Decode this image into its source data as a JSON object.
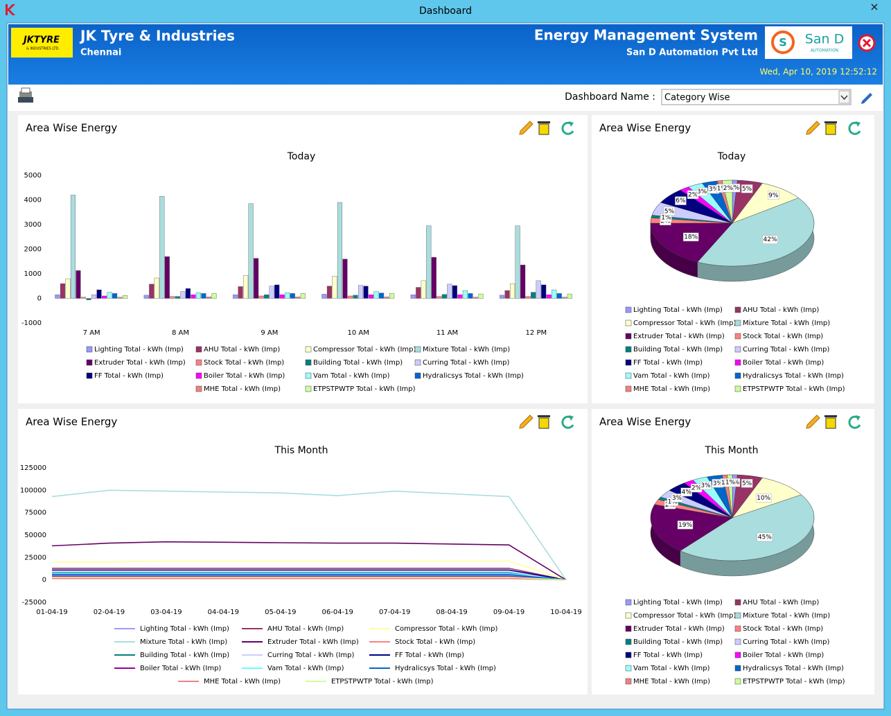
{
  "window": {
    "title": "Dashboard"
  },
  "header": {
    "logo_text": "JKTYRE",
    "logo_subtext": "& INDUSTRIES LTD.",
    "company": "JK Tyre & Industries",
    "location": "Chennai",
    "system": "Energy Management System",
    "vendor": "San D Automation Pvt Ltd",
    "vendor_logo": "San D",
    "vendor_logo_sub": "AUTOMATION",
    "datetime": "Wed, Apr 10, 2019 12:52:12"
  },
  "toolbar": {
    "label": "Dashboard Name :",
    "selected": "Category Wise"
  },
  "chart_data": [
    {
      "type": "bar",
      "panel_title": "Area Wise Energy",
      "title": "Today",
      "categories": [
        "7 AM",
        "8 AM",
        "9 AM",
        "10 AM",
        "11 AM",
        "12 PM"
      ],
      "series": [
        {
          "name": "Lighting Total - kWh (Imp)",
          "color": "#9999ff",
          "values": [
            150,
            130,
            150,
            170,
            150,
            130
          ]
        },
        {
          "name": "AHU Total - kWh (Imp)",
          "color": "#993366",
          "values": [
            600,
            580,
            480,
            500,
            450,
            320
          ]
        },
        {
          "name": "Compressor Total - kWh (Imp)",
          "color": "#ffffcc",
          "values": [
            800,
            830,
            930,
            900,
            720,
            600
          ]
        },
        {
          "name": "Mixture Total - kWh (Imp)",
          "color": "#aadddd",
          "values": [
            4200,
            4150,
            3850,
            3900,
            2950,
            2950
          ]
        },
        {
          "name": "Extruder Total - kWh (Imp)",
          "color": "#660066",
          "values": [
            1130,
            1700,
            1630,
            1600,
            1670,
            1360
          ]
        },
        {
          "name": "Stock Total - kWh (Imp)",
          "color": "#ff8080",
          "values": [
            50,
            80,
            100,
            100,
            80,
            80
          ]
        },
        {
          "name": "Building Total - kWh (Imp)",
          "color": "#008080",
          "values": [
            -60,
            80,
            150,
            130,
            160,
            250
          ]
        },
        {
          "name": "Curring Total - kWh (Imp)",
          "color": "#ccccff",
          "values": [
            150,
            280,
            500,
            530,
            580,
            720
          ]
        },
        {
          "name": "FF Total - kWh (Imp)",
          "color": "#000080",
          "values": [
            350,
            400,
            550,
            500,
            520,
            550
          ]
        },
        {
          "name": "Boiler Total - kWh (Imp)",
          "color": "#ff00ff",
          "values": [
            100,
            150,
            150,
            150,
            150,
            150
          ]
        },
        {
          "name": "Vam Total - kWh (Imp)",
          "color": "#99ffff",
          "values": [
            250,
            230,
            230,
            280,
            320,
            350
          ]
        },
        {
          "name": "Hydralicsys Total - kWh (Imp)",
          "color": "#0066cc",
          "values": [
            200,
            200,
            200,
            220,
            200,
            200
          ]
        },
        {
          "name": "MHE Total - kWh (Imp)",
          "color": "#f08080",
          "values": [
            50,
            60,
            60,
            60,
            50,
            50
          ]
        },
        {
          "name": "ETPSTPWTP Total - kWh (Imp)",
          "color": "#ccff99",
          "values": [
            120,
            200,
            200,
            200,
            180,
            180
          ]
        }
      ],
      "ylim": [
        -1000,
        5000
      ],
      "yticks": [
        -1000,
        0,
        1000,
        2000,
        3000,
        4000,
        5000
      ],
      "grid": false
    },
    {
      "type": "pie",
      "panel_title": "Area Wise Energy",
      "title": "Today",
      "categories": [
        "Lighting Total - kWh (Imp)",
        "AHU Total - kWh (Imp)",
        "Compressor Total - kWh (Imp)",
        "Mixture Total - kWh (Imp)",
        "Extruder Total - kWh (Imp)",
        "Stock Total - kWh (Imp)",
        "Building Total - kWh (Imp)",
        "Curring Total - kWh (Imp)",
        "FF Total - kWh (Imp)",
        "Boiler Total - kWh (Imp)",
        "Vam Total - kWh (Imp)",
        "Hydralicsys Total - kWh (Imp)",
        "MHE Total - kWh (Imp)",
        "ETPSTPWTP Total - kWh (Imp)"
      ],
      "colors": [
        "#9999ff",
        "#993366",
        "#ffffcc",
        "#aadddd",
        "#660066",
        "#ff8080",
        "#008080",
        "#ccccff",
        "#000080",
        "#ff00ff",
        "#99ffff",
        "#0066cc",
        "#f08080",
        "#ccff99"
      ],
      "values": [
        1,
        5,
        9,
        42,
        18,
        2,
        1,
        5,
        6,
        2,
        3,
        3,
        1,
        2
      ],
      "value_labels": [
        "1%",
        "5%",
        "9%",
        "42%",
        "18%",
        "2%",
        "1%",
        "5%",
        "6%",
        "2%",
        "3%",
        "3%",
        "1%",
        "2%"
      ]
    },
    {
      "type": "line",
      "panel_title": "Area Wise Energy",
      "title": "This Month",
      "categories": [
        "01-04-19",
        "02-04-19",
        "03-04-19",
        "04-04-19",
        "05-04-19",
        "06-04-19",
        "07-04-19",
        "08-04-19",
        "09-04-19",
        "10-04-19"
      ],
      "series": [
        {
          "name": "Lighting Total - kWh (Imp)",
          "color": "#9999ff",
          "values": [
            5000,
            5000,
            5000,
            5000,
            5000,
            5000,
            5000,
            5000,
            5000,
            0
          ]
        },
        {
          "name": "AHU Total - kWh (Imp)",
          "color": "#993366",
          "values": [
            13000,
            13000,
            13000,
            13000,
            13000,
            13000,
            13000,
            13000,
            13000,
            0
          ]
        },
        {
          "name": "Compressor Total - kWh (Imp)",
          "color": "#ffff99",
          "values": [
            20000,
            20000,
            21000,
            21000,
            21000,
            21000,
            21000,
            21000,
            21000,
            0
          ]
        },
        {
          "name": "Mixture Total - kWh (Imp)",
          "color": "#aadddd",
          "values": [
            93000,
            100000,
            99000,
            98000,
            97000,
            94000,
            99000,
            96000,
            93000,
            0
          ]
        },
        {
          "name": "Extruder Total - kWh (Imp)",
          "color": "#660066",
          "values": [
            38000,
            41000,
            42500,
            42000,
            41500,
            41000,
            41000,
            40000,
            39000,
            0
          ]
        },
        {
          "name": "Stock Total - kWh (Imp)",
          "color": "#ff8080",
          "values": [
            2500,
            2500,
            2500,
            2500,
            2500,
            2500,
            2500,
            2500,
            2500,
            0
          ]
        },
        {
          "name": "Building Total - kWh (Imp)",
          "color": "#008080",
          "values": [
            8000,
            8000,
            8000,
            8000,
            8000,
            8000,
            8000,
            8000,
            8000,
            0
          ]
        },
        {
          "name": "Curring Total - kWh (Imp)",
          "color": "#ccccff",
          "values": [
            9000,
            9000,
            9000,
            9000,
            9000,
            9000,
            9000,
            9000,
            9000,
            0
          ]
        },
        {
          "name": "FF Total - kWh (Imp)",
          "color": "#000080",
          "values": [
            11000,
            11000,
            11000,
            11000,
            11000,
            11000,
            11000,
            11000,
            11000,
            0
          ]
        },
        {
          "name": "Boiler Total - kWh (Imp)",
          "color": "#990099",
          "values": [
            4000,
            4000,
            4000,
            4000,
            4000,
            4000,
            4000,
            4000,
            4000,
            0
          ]
        },
        {
          "name": "Vam Total - kWh (Imp)",
          "color": "#66ffff",
          "values": [
            7000,
            7000,
            7000,
            7000,
            7000,
            7000,
            7000,
            7000,
            7000,
            0
          ]
        },
        {
          "name": "Hydralicsys Total - kWh (Imp)",
          "color": "#0066cc",
          "values": [
            6000,
            6000,
            6000,
            6000,
            6000,
            6000,
            6000,
            6000,
            6000,
            0
          ]
        },
        {
          "name": "MHE Total - kWh (Imp)",
          "color": "#f08080",
          "values": [
            1500,
            1500,
            1500,
            1500,
            1500,
            1500,
            1500,
            1500,
            1500,
            0
          ]
        },
        {
          "name": "ETPSTPWTP Total - kWh (Imp)",
          "color": "#ccff99",
          "values": [
            3000,
            3000,
            3000,
            3000,
            3000,
            3000,
            3000,
            3000,
            3000,
            0
          ]
        }
      ],
      "ylim": [
        -25000,
        125000
      ],
      "yticks": [
        -25000,
        0,
        25000,
        50000,
        75000,
        100000,
        125000
      ],
      "grid": false
    },
    {
      "type": "pie",
      "panel_title": "Area Wise Energy",
      "title": "This Month",
      "categories": [
        "Lighting Total - kWh (Imp)",
        "AHU Total - kWh (Imp)",
        "Compressor Total - kWh (Imp)",
        "Mixture Total - kWh (Imp)",
        "Extruder Total - kWh (Imp)",
        "Stock Total - kWh (Imp)",
        "Building Total - kWh (Imp)",
        "Curring Total - kWh (Imp)",
        "FF Total - kWh (Imp)",
        "Boiler Total - kWh (Imp)",
        "Vam Total - kWh (Imp)",
        "Hydralicsys Total - kWh (Imp)",
        "MHE Total - kWh (Imp)",
        "ETPSTPWTP Total - kWh (Imp)"
      ],
      "colors": [
        "#9999ff",
        "#993366",
        "#ffffcc",
        "#aadddd",
        "#660066",
        "#ff8080",
        "#008080",
        "#ccccff",
        "#000080",
        "#ff00ff",
        "#99ffff",
        "#0066cc",
        "#f08080",
        "#ccff99"
      ],
      "values": [
        1,
        5,
        10,
        45,
        19,
        2,
        1,
        3,
        4,
        2,
        3,
        3,
        1,
        1
      ],
      "value_labels": [
        "1%",
        "5%",
        "10%",
        "45%",
        "19%",
        "2%",
        "1%",
        "3%",
        "4%",
        "2%",
        "3%",
        "3%",
        "1%",
        "1%"
      ]
    }
  ]
}
